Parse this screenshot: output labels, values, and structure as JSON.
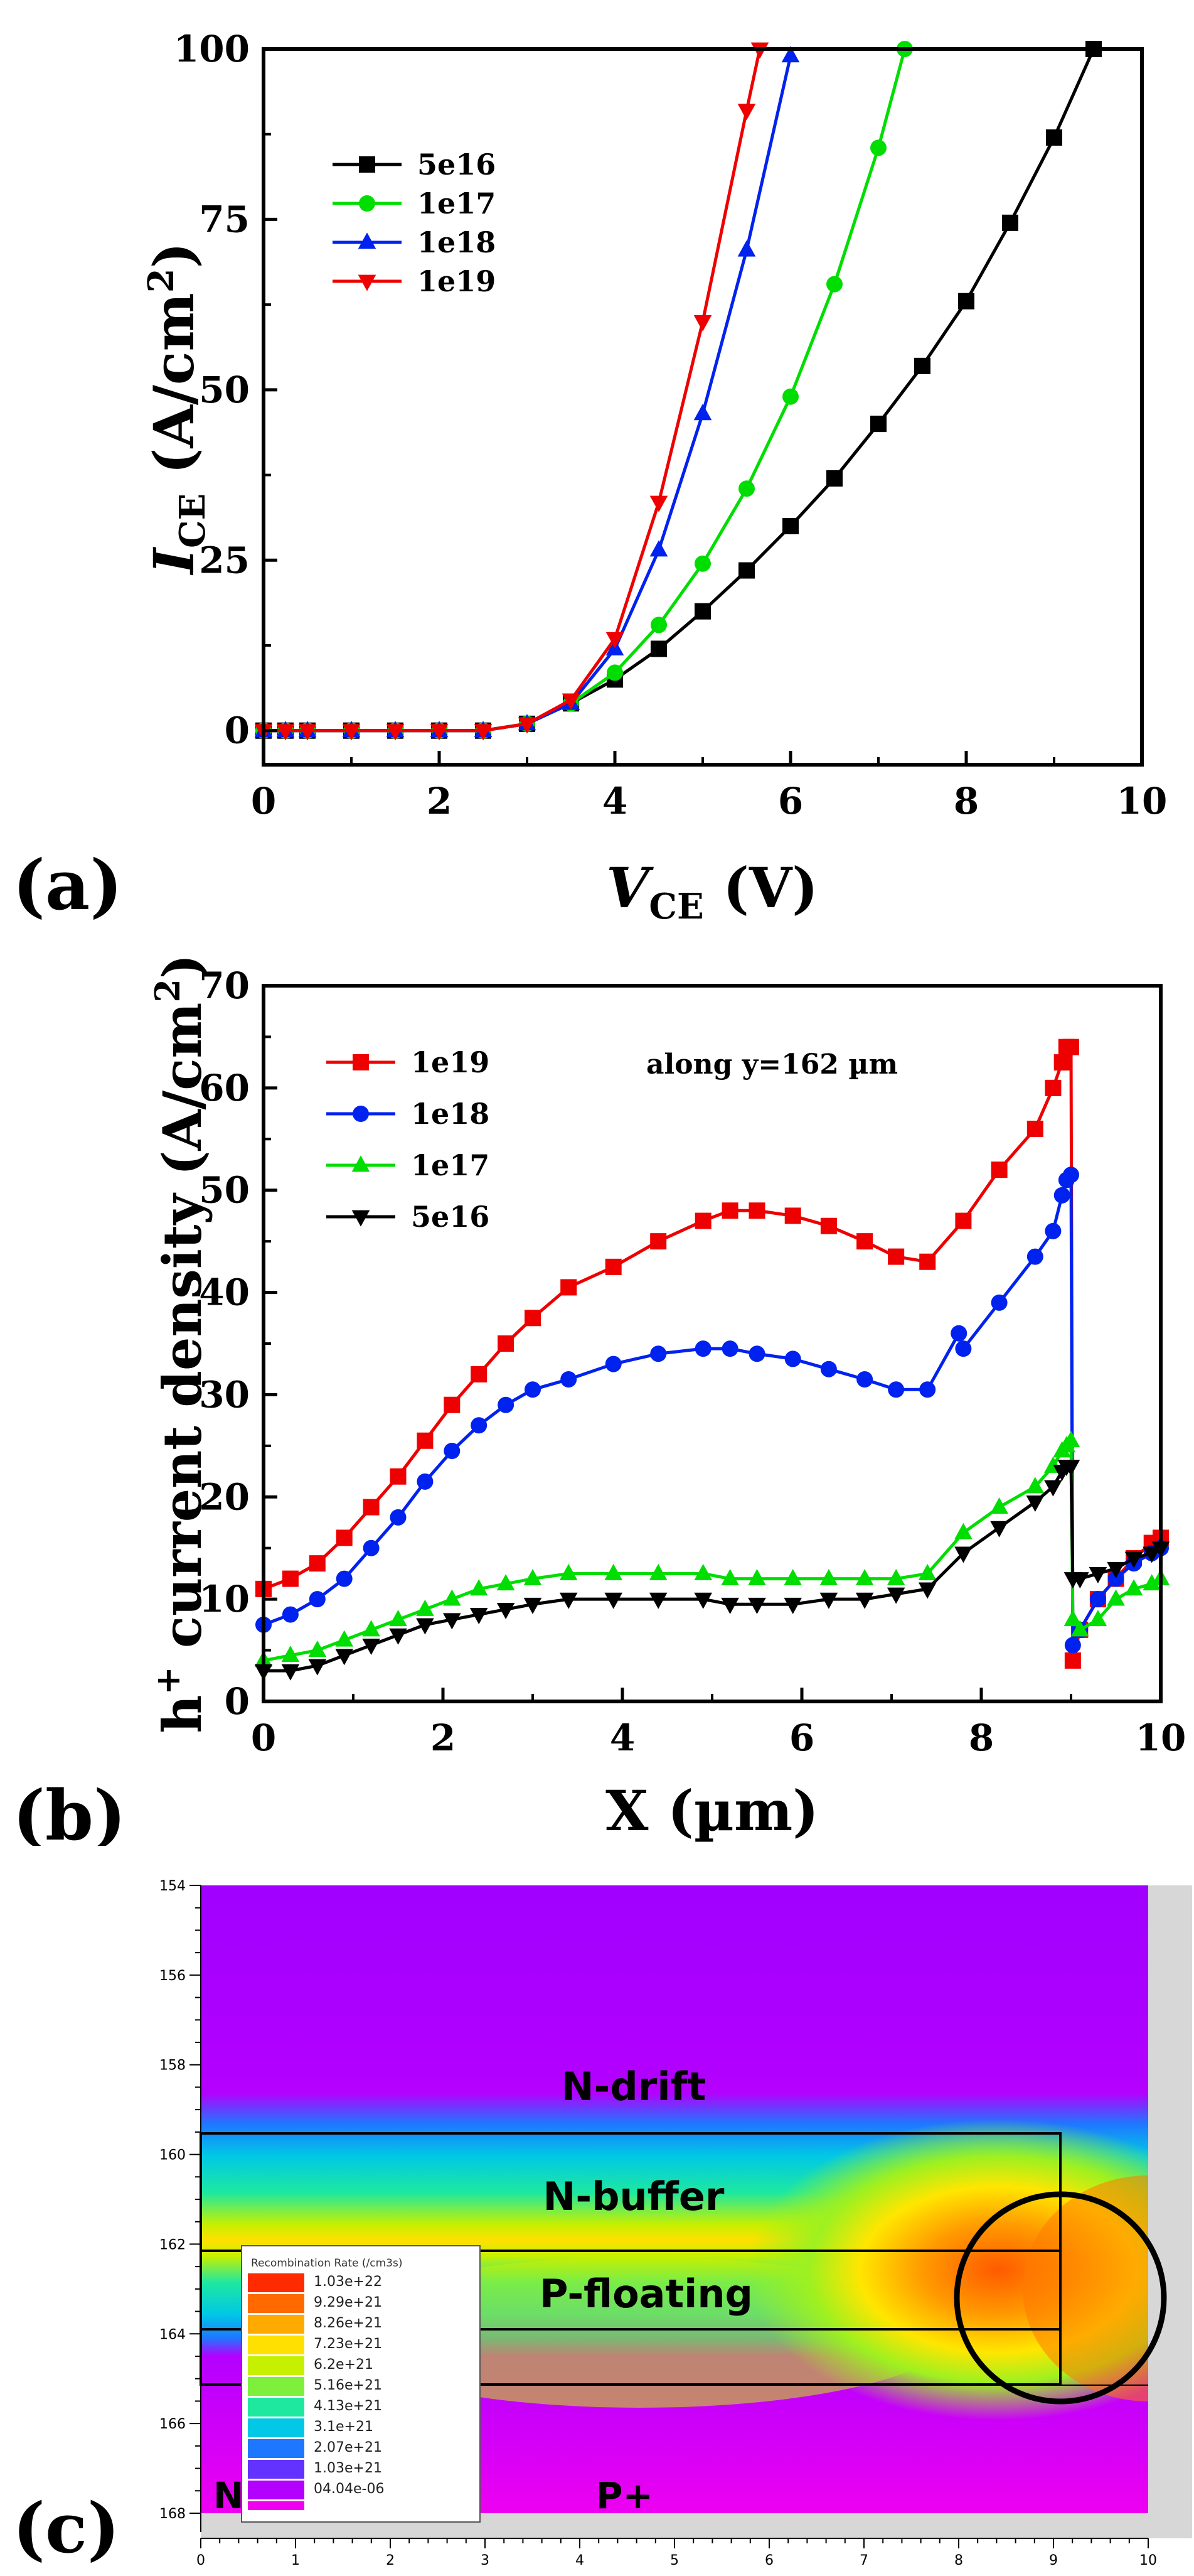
{
  "chart_data": [
    {
      "panel_label": "(a)",
      "type": "line",
      "xlabel": "V",
      "xlabel_sub": "CE",
      "xlabel_unit": " (V)",
      "ylabel": "I",
      "ylabel_sub": "CE",
      "ylabel_unit": " (A/cm",
      "ylabel_sup": "2",
      "ylabel_close": ")",
      "xlim": [
        0,
        10
      ],
      "ylim": [
        -5,
        100
      ],
      "xticks": [
        "0",
        "2",
        "4",
        "6",
        "8",
        "10"
      ],
      "yticks": [
        "0",
        "25",
        "50",
        "75",
        "100"
      ],
      "legend_position": "top-left",
      "series": [
        {
          "name": "5e16",
          "color": "#000000",
          "marker": "square",
          "x": [
            0,
            0.25,
            0.5,
            1,
            1.5,
            2,
            2.5,
            3,
            3.5,
            4,
            4.5,
            5,
            5.5,
            6,
            6.5,
            7,
            7.5,
            8,
            8.5,
            9,
            9.45
          ],
          "y": [
            0,
            0,
            0,
            0,
            0,
            0,
            0,
            1,
            4,
            7.5,
            12,
            17.5,
            23.5,
            30,
            37,
            45,
            53.5,
            63,
            74.5,
            87,
            100
          ]
        },
        {
          "name": "1e17",
          "color": "#00dd00",
          "marker": "circle",
          "x": [
            0,
            0.25,
            0.5,
            1,
            1.5,
            2,
            2.5,
            3,
            3.5,
            4,
            4.5,
            5,
            5.5,
            6,
            6.5,
            7,
            7.3
          ],
          "y": [
            0,
            0,
            0,
            0,
            0,
            0,
            0,
            1,
            4,
            8.5,
            15.5,
            24.5,
            35.5,
            49,
            65.5,
            85.5,
            100
          ]
        },
        {
          "name": "1e18",
          "color": "#0022ee",
          "marker": "triangle-up",
          "x": [
            0,
            0.25,
            0.5,
            1,
            1.5,
            2,
            2.5,
            3,
            3.5,
            4,
            4.5,
            5,
            5.5,
            6
          ],
          "y": [
            0,
            0,
            0,
            0,
            0,
            0,
            0,
            1,
            4,
            12,
            26.5,
            46.5,
            70.5,
            99
          ]
        },
        {
          "name": "1e19",
          "color": "#ee0000",
          "marker": "triangle-down",
          "x": [
            0,
            0.25,
            0.5,
            1,
            1.5,
            2,
            2.5,
            3,
            3.5,
            4,
            4.5,
            5,
            5.5,
            5.65
          ],
          "y": [
            0,
            0,
            0,
            0,
            0,
            0,
            0,
            1,
            4.5,
            13.5,
            33.5,
            60,
            91,
            100
          ]
        }
      ]
    },
    {
      "panel_label": "(b)",
      "type": "line",
      "xlabel": "X (µm)",
      "ylabel": "h",
      "ylabel_sup": "+",
      "ylabel_rest": " current density (A/cm",
      "ylabel_sup2": "2",
      "ylabel_close": ")",
      "annotation": "along y=162 µm",
      "xlim": [
        0,
        10
      ],
      "ylim": [
        0,
        70
      ],
      "xticks": [
        "0",
        "2",
        "4",
        "6",
        "8",
        "10"
      ],
      "yticks": [
        "0",
        "10",
        "20",
        "30",
        "40",
        "50",
        "60",
        "70"
      ],
      "legend_position": "top-left",
      "series": [
        {
          "name": "1e19",
          "color": "#ee0000",
          "marker": "square",
          "x": [
            0,
            0.3,
            0.6,
            0.9,
            1.2,
            1.5,
            1.8,
            2.1,
            2.4,
            2.7,
            3.0,
            3.4,
            3.9,
            4.4,
            4.9,
            5.2,
            5.5,
            5.9,
            6.3,
            6.7,
            7.05,
            7.4,
            7.8,
            8.2,
            8.6,
            8.8,
            8.9,
            8.95,
            9.0,
            9.02,
            9.1,
            9.3,
            9.5,
            9.7,
            9.9,
            10
          ],
          "y": [
            11,
            12,
            13.5,
            16,
            19,
            22,
            25.5,
            29,
            32,
            35,
            37.5,
            40.5,
            42.5,
            45,
            47,
            48,
            48,
            47.5,
            46.5,
            45,
            43.5,
            43,
            47,
            52,
            56,
            60,
            62.5,
            64,
            64,
            4,
            7,
            10,
            12,
            14,
            15.5,
            16
          ]
        },
        {
          "name": "1e18",
          "color": "#0022ee",
          "marker": "circle",
          "x": [
            0,
            0.3,
            0.6,
            0.9,
            1.2,
            1.5,
            1.8,
            2.1,
            2.4,
            2.7,
            3.0,
            3.4,
            3.9,
            4.4,
            4.9,
            5.2,
            5.5,
            5.9,
            6.3,
            6.7,
            7.05,
            7.4,
            7.75,
            7.8,
            8.2,
            8.6,
            8.8,
            8.9,
            8.95,
            9.0,
            9.02,
            9.1,
            9.3,
            9.5,
            9.7,
            9.9,
            10
          ],
          "y": [
            7.5,
            8.5,
            10,
            12,
            15,
            18,
            21.5,
            24.5,
            27,
            29,
            30.5,
            31.5,
            33,
            34,
            34.5,
            34.5,
            34,
            33.5,
            32.5,
            31.5,
            30.5,
            30.5,
            36,
            34.5,
            39,
            43.5,
            46,
            49.5,
            51,
            51.5,
            5.5,
            7,
            10,
            12,
            13.5,
            14.5,
            15
          ]
        },
        {
          "name": "1e17",
          "color": "#00dd00",
          "marker": "triangle-up",
          "x": [
            0,
            0.3,
            0.6,
            0.9,
            1.2,
            1.5,
            1.8,
            2.1,
            2.4,
            2.7,
            3.0,
            3.4,
            3.9,
            4.4,
            4.9,
            5.2,
            5.5,
            5.9,
            6.3,
            6.7,
            7.05,
            7.4,
            7.8,
            8.2,
            8.6,
            8.8,
            8.9,
            8.95,
            9.0,
            9.02,
            9.1,
            9.3,
            9.5,
            9.7,
            9.9,
            10
          ],
          "y": [
            4,
            4.5,
            5,
            6,
            7,
            8,
            9,
            10,
            11,
            11.5,
            12,
            12.5,
            12.5,
            12.5,
            12.5,
            12,
            12,
            12,
            12,
            12,
            12,
            12.5,
            16.5,
            19,
            21,
            23,
            24.5,
            25,
            25.5,
            8,
            7,
            8,
            10,
            11,
            11.5,
            12
          ]
        },
        {
          "name": "5e16",
          "color": "#000000",
          "marker": "triangle-down",
          "x": [
            0,
            0.3,
            0.6,
            0.9,
            1.2,
            1.5,
            1.8,
            2.1,
            2.4,
            2.7,
            3.0,
            3.4,
            3.9,
            4.4,
            4.9,
            5.2,
            5.5,
            5.9,
            6.3,
            6.7,
            7.05,
            7.4,
            7.8,
            8.2,
            8.6,
            8.8,
            8.9,
            8.95,
            9.0,
            9.02,
            9.1,
            9.3,
            9.5,
            9.7,
            9.9,
            10
          ],
          "y": [
            3,
            3,
            3.5,
            4.5,
            5.5,
            6.5,
            7.5,
            8,
            8.5,
            9,
            9.5,
            10,
            10,
            10,
            10,
            9.5,
            9.5,
            9.5,
            10,
            10,
            10.5,
            11,
            14.5,
            17,
            19.5,
            21,
            22.5,
            23,
            23,
            12,
            12,
            12.5,
            13,
            14,
            14.5,
            15
          ]
        }
      ]
    },
    {
      "panel_label": "(c)",
      "type": "heatmap",
      "xlim": [
        0,
        10
      ],
      "ylim": [
        168,
        154
      ],
      "xticks": [
        "0",
        "1",
        "2",
        "3",
        "4",
        "5",
        "6",
        "7",
        "8",
        "9",
        "10"
      ],
      "yticks": [
        "154",
        "156",
        "158",
        "160",
        "162",
        "164",
        "166",
        "168"
      ],
      "region_labels": [
        "N-drift",
        "N-buffer",
        "P-floating",
        "N+",
        "P+"
      ],
      "legend_title": "Recombination Rate (/cm3s)",
      "legend_values": [
        "1.03e+22",
        "9.29e+21",
        "8.26e+21",
        "7.23e+21",
        "6.2e+21",
        "5.16e+21",
        "4.13e+21",
        "3.1e+21",
        "2.07e+21",
        "1.03e+21",
        "04.04e-06"
      ],
      "legend_colors": [
        "#ff2a00",
        "#ff6a00",
        "#ffaa00",
        "#ffe000",
        "#c6f000",
        "#7ef03c",
        "#1ee8a0",
        "#00c8e6",
        "#1e78ff",
        "#6432ff",
        "#b400ff",
        "#f000f0"
      ],
      "highlight": "circle"
    }
  ]
}
